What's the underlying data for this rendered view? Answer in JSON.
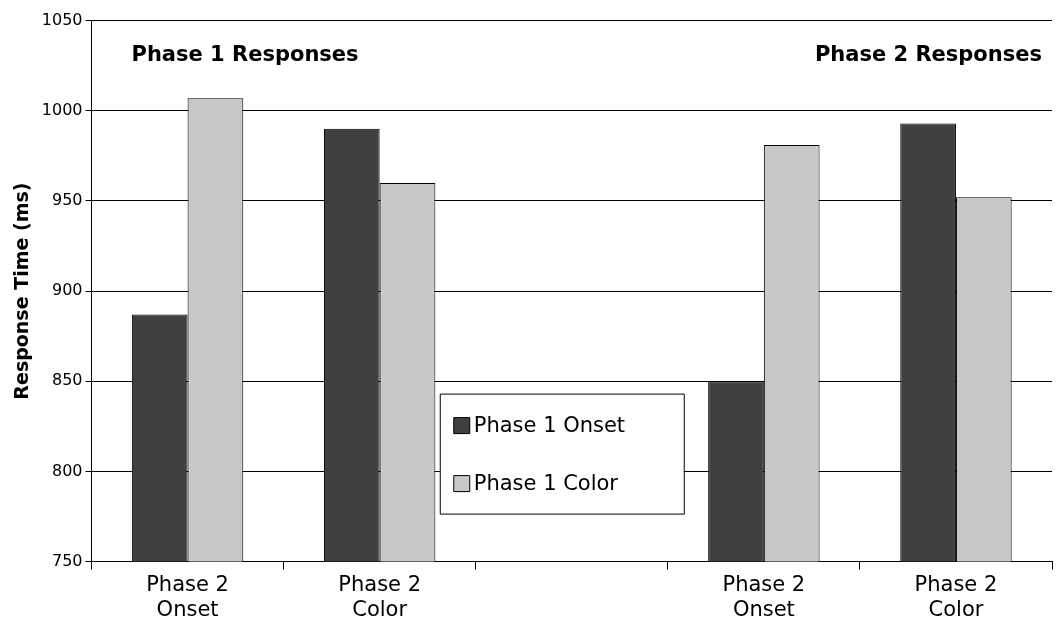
{
  "chart_data": {
    "type": "bar",
    "ylabel": "Response Time (ms)",
    "categories": [
      "Phase 2\nOnset",
      "Phase 2\nColor",
      null,
      "Phase 2\nOnset",
      "Phase 2\nColor"
    ],
    "series": [
      {
        "name": "Phase 1 Onset",
        "color": "#404040",
        "values": [
          887,
          990,
          null,
          850,
          993
        ]
      },
      {
        "name": "Phase 1 Color",
        "color": "#c8c8c8",
        "values": [
          1007,
          960,
          null,
          981,
          952
        ]
      }
    ],
    "ylim": [
      750,
      1050
    ],
    "yticks": [
      750,
      800,
      850,
      900,
      950,
      1000,
      1050
    ],
    "grid": "y",
    "legend": "bottom",
    "annotations": [
      "Phase 1 Responses",
      "Phase 2 Responses"
    ]
  }
}
